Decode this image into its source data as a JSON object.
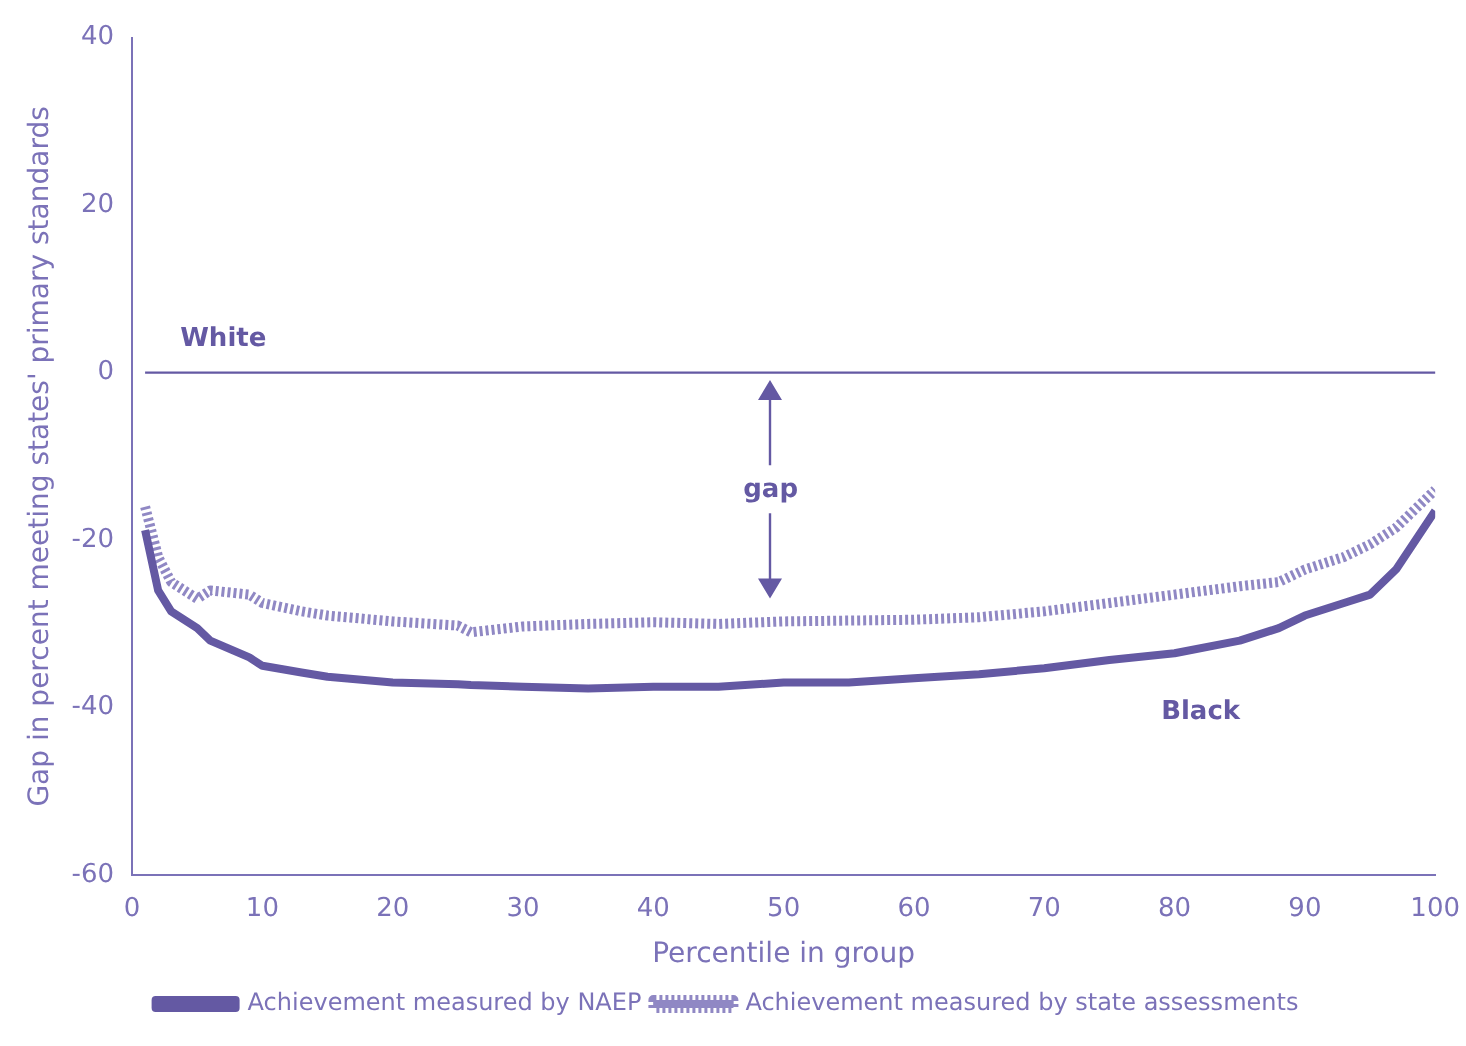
{
  "chart_data": {
    "type": "line",
    "xlabel": "Percentile in group",
    "ylabel": "Gap in percent meeting states' primary standards",
    "x": [
      1,
      2,
      3,
      5,
      6,
      9,
      10,
      13,
      15,
      20,
      25,
      26,
      30,
      35,
      40,
      45,
      50,
      55,
      60,
      65,
      70,
      75,
      80,
      85,
      88,
      90,
      93,
      95,
      97,
      100
    ],
    "series": [
      {
        "name": "Achievement measured by NAEP",
        "color": "#6459a3",
        "line_style": "solid",
        "values": [
          -18.8,
          -26,
          -28.5,
          -30.5,
          -32,
          -34,
          -35,
          -35.8,
          -36.3,
          -37,
          -37.2,
          -37.3,
          -37.5,
          -37.7,
          -37.5,
          -37.5,
          -37,
          -37,
          -36.5,
          -36,
          -35.3,
          -34.3,
          -33.5,
          -32,
          -30.5,
          -29,
          -27.5,
          -26.5,
          -23.5,
          -16.5
        ]
      },
      {
        "name": "Achievement measured by state assessments",
        "color": "#9088c4",
        "line_style": "dotted",
        "values": [
          -16,
          -22,
          -25,
          -27,
          -26,
          -26.5,
          -27.5,
          -28.5,
          -29,
          -29.7,
          -30.2,
          -31,
          -30.3,
          -30,
          -29.8,
          -30,
          -29.7,
          -29.6,
          -29.5,
          -29.2,
          -28.5,
          -27.5,
          -26.5,
          -25.5,
          -25,
          -23.5,
          -22,
          -20.5,
          -18.5,
          -14
        ]
      }
    ],
    "xlim": [
      0,
      100
    ],
    "xticks": [
      0,
      10,
      20,
      30,
      40,
      50,
      60,
      70,
      80,
      90,
      100
    ],
    "ylim": [
      -60,
      40
    ],
    "yticks": [
      -60,
      -40,
      -20,
      0,
      20,
      40
    ],
    "ref_lines": [
      {
        "axis": "y",
        "value": 0,
        "color": "#6459a3"
      }
    ],
    "annotations": [
      "White",
      "Black",
      "gap"
    ],
    "grid": false,
    "legend": "bottom",
    "marker": "none"
  }
}
